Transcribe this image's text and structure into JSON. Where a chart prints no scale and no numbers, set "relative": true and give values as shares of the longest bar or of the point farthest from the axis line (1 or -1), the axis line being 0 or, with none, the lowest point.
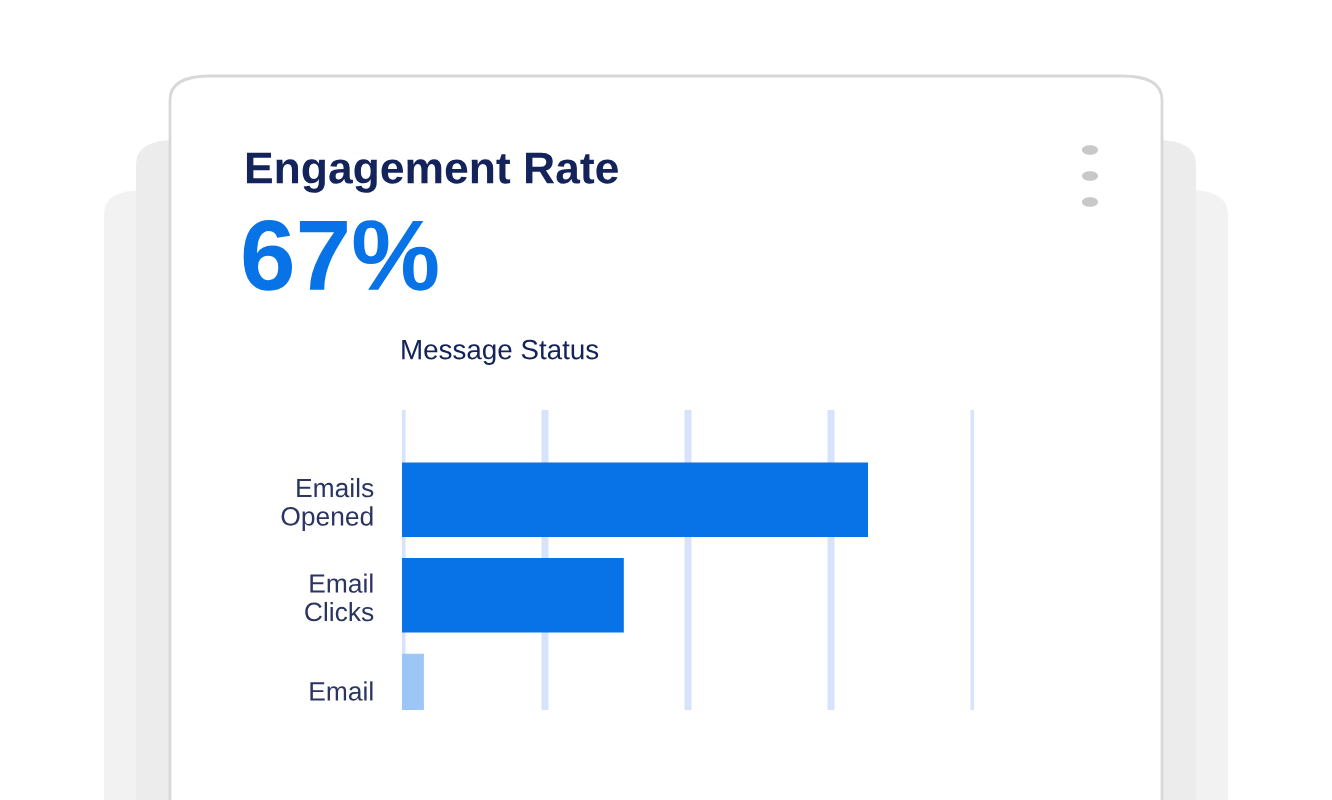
{
  "chart_data": {
    "type": "bar",
    "orientation": "horizontal",
    "relative": true,
    "title": "Engagement Rate",
    "subtitle": "67%",
    "ylabel": "Message Status",
    "categories": [
      "Emails\nOpened",
      "Email\nClicks",
      "Email"
    ],
    "values": [
      1,
      0.476,
      0.047
    ],
    "colors": [
      "#0873e6",
      "#0873e6",
      "#9cc6f5"
    ],
    "grid": "x",
    "tick_labels": "y"
  }
}
